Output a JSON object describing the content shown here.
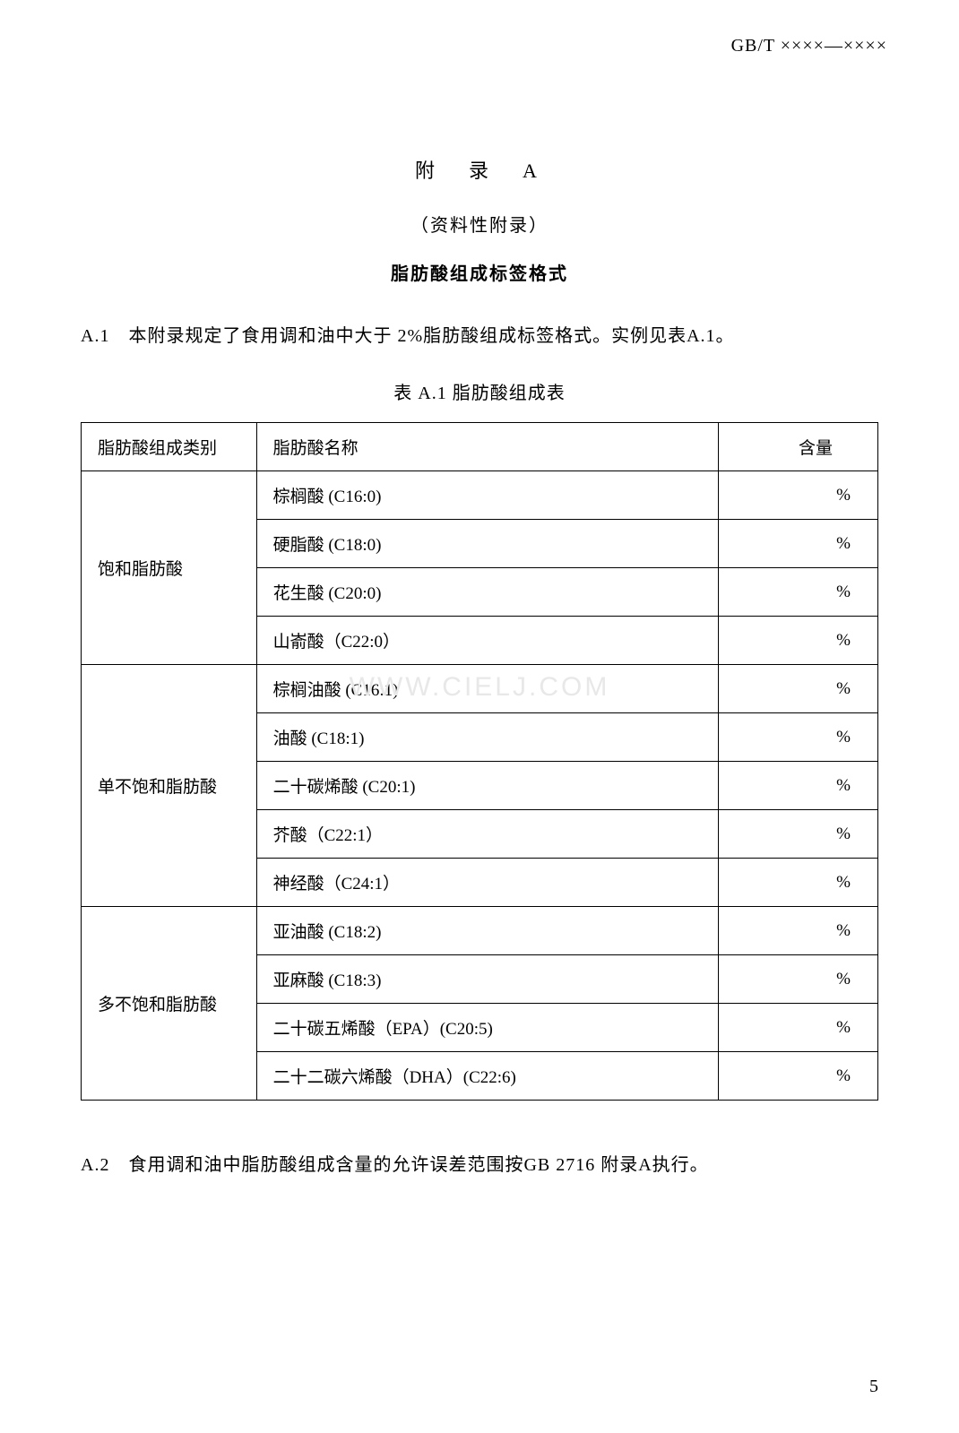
{
  "header": {
    "standard_code": "GB/T ××××—××××"
  },
  "titles": {
    "appendix": "附　录　A",
    "subtitle": "（资料性附录）",
    "section_title": "脂肪酸组成标签格式"
  },
  "section_a1": {
    "text": "A.1　本附录规定了食用调和油中大于 2%脂肪酸组成标签格式。实例见表A.1。"
  },
  "table": {
    "caption": "表 A.1 脂肪酸组成表",
    "columns": {
      "category": "脂肪酸组成类别",
      "name": "脂肪酸名称",
      "amount": "含量"
    },
    "groups": [
      {
        "category": "饱和脂肪酸",
        "rows": [
          {
            "name": "棕榈酸 (C16:0)",
            "amount": "%"
          },
          {
            "name": "硬脂酸 (C18:0)",
            "amount": "%"
          },
          {
            "name": "花生酸 (C20:0)",
            "amount": "%"
          },
          {
            "name": "山嵛酸（C22:0）",
            "amount": "%"
          }
        ]
      },
      {
        "category": "单不饱和脂肪酸",
        "rows": [
          {
            "name": "棕榈油酸 (C16:1)",
            "amount": "%"
          },
          {
            "name": "油酸 (C18:1)",
            "amount": "%"
          },
          {
            "name": "二十碳烯酸 (C20:1)",
            "amount": "%"
          },
          {
            "name": "芥酸（C22:1）",
            "amount": "%"
          },
          {
            "name": "神经酸（C24:1）",
            "amount": "%"
          }
        ]
      },
      {
        "category": "多不饱和脂肪酸",
        "rows": [
          {
            "name": "亚油酸 (C18:2)",
            "amount": "%"
          },
          {
            "name": "亚麻酸 (C18:3)",
            "amount": "%"
          },
          {
            "name": "二十碳五烯酸（EPA）(C20:5)",
            "amount": "%"
          },
          {
            "name": "二十二碳六烯酸（DHA）(C22:6)",
            "amount": "%"
          }
        ]
      }
    ]
  },
  "section_a2": {
    "text": "A.2　食用调和油中脂肪酸组成含量的允许误差范围按GB 2716 附录A执行。"
  },
  "watermark": "WWW.CIELJ.COM",
  "page_number": "5"
}
